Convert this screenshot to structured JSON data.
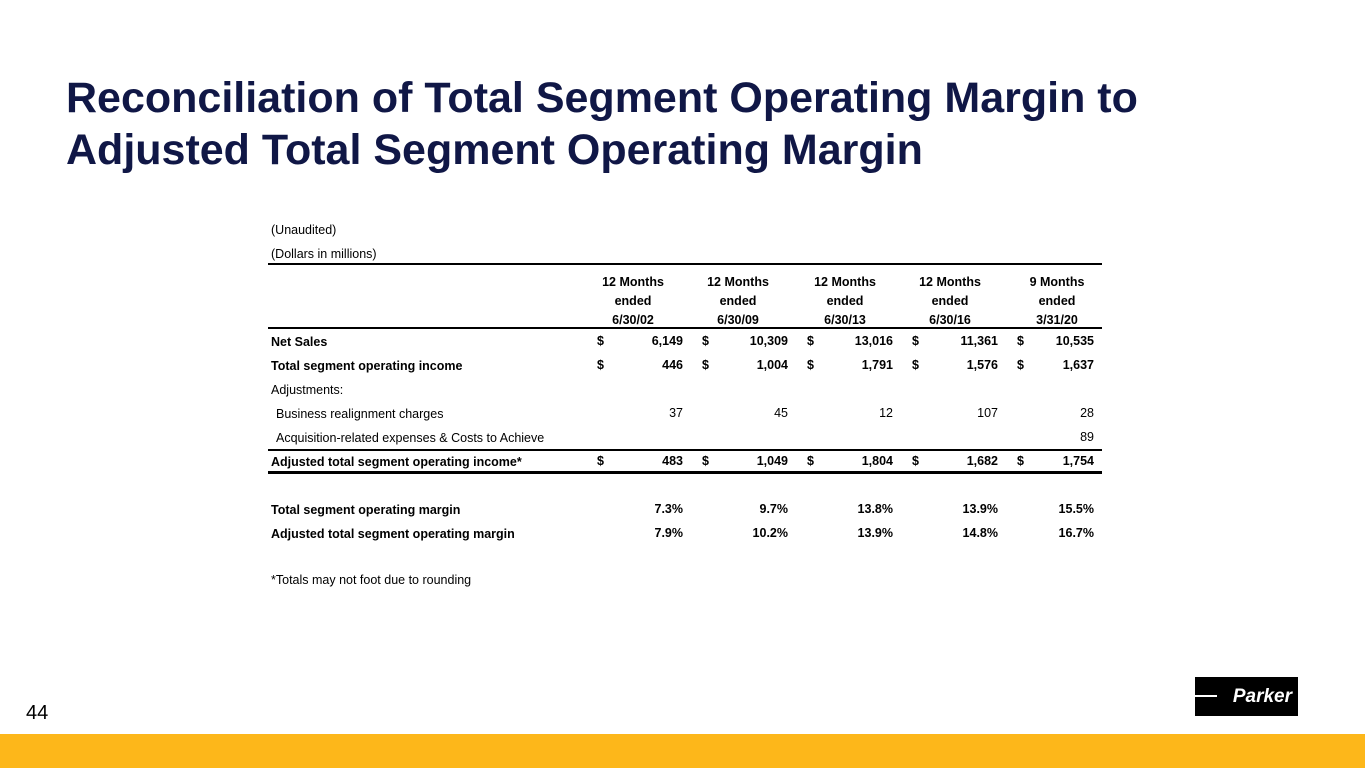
{
  "title": "Reconciliation of Total Segment Operating Margin to Adjusted Total Segment Operating Margin",
  "title_line1": "Reconciliation of Total Segment Operating Margin to",
  "title_line2": "Adjusted Total Segment Operating Margin",
  "notes": {
    "unaudited": "(Unaudited)",
    "units": "(Dollars in millions)",
    "footnote": "*Totals may not foot due to rounding"
  },
  "columns": [
    {
      "l1": "12 Months",
      "l2": "ended",
      "l3": "6/30/02"
    },
    {
      "l1": "12 Months",
      "l2": "ended",
      "l3": "6/30/09"
    },
    {
      "l1": "12 Months",
      "l2": "ended",
      "l3": "6/30/13"
    },
    {
      "l1": "12 Months",
      "l2": "ended",
      "l3": "6/30/16"
    },
    {
      "l1": "9 Months",
      "l2": "ended",
      "l3": "3/31/20"
    }
  ],
  "currency": "$",
  "rows": {
    "net_sales": {
      "label": "Net Sales",
      "values": [
        "6,149",
        "10,309",
        "13,016",
        "11,361",
        "10,535"
      ]
    },
    "total_income": {
      "label": "Total segment operating income",
      "values": [
        "446",
        "1,004",
        "1,791",
        "1,576",
        "1,637"
      ]
    },
    "adjustments": {
      "label": "Adjustments:"
    },
    "realignment": {
      "label": "Business realignment charges",
      "values": [
        "37",
        "45",
        "12",
        "107",
        "28"
      ]
    },
    "acquisition": {
      "label": "Acquisition-related expenses & Costs to Achieve",
      "values": [
        "",
        "",
        "",
        "",
        "89"
      ]
    },
    "adjusted_income": {
      "label": "Adjusted total segment operating income*",
      "values": [
        "483",
        "1,049",
        "1,804",
        "1,682",
        "1,754"
      ]
    },
    "margin": {
      "label": "Total segment operating margin",
      "values": [
        "7.3%",
        "9.7%",
        "13.8%",
        "13.9%",
        "15.5%"
      ]
    },
    "adjusted_margin": {
      "label": "Adjusted total segment operating margin",
      "values": [
        "7.9%",
        "10.2%",
        "13.9%",
        "14.8%",
        "16.7%"
      ]
    }
  },
  "page_number": "44",
  "logo_text": "Parker",
  "colors": {
    "title": "#101746",
    "footer": "#fdb71a"
  }
}
